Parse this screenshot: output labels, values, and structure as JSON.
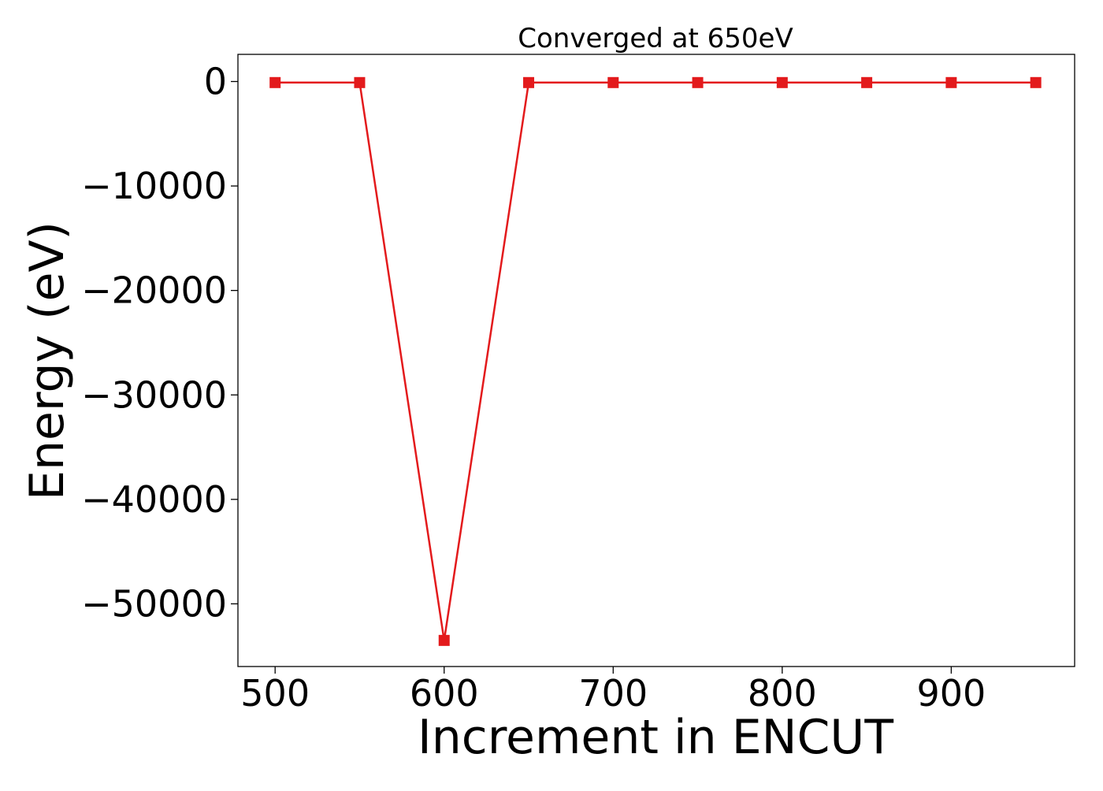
{
  "chart_data": {
    "type": "line",
    "title": "Converged at 650eV",
    "xlabel": "Increment in ENCUT",
    "ylabel": "Energy (eV)",
    "xlim": [
      478,
      973
    ],
    "ylim": [
      -56000,
      2600
    ],
    "x_ticks": [
      500,
      600,
      700,
      800,
      900
    ],
    "y_ticks": [
      0,
      -10000,
      -20000,
      -30000,
      -40000,
      -50000
    ],
    "grid": false,
    "marker": "square",
    "series": [
      {
        "color": "#e31a1c",
        "x": [
          500,
          550,
          600,
          650,
          700,
          750,
          800,
          850,
          900,
          950
        ],
        "y": [
          -100,
          -100,
          -53500,
          -100,
          -100,
          -100,
          -100,
          -100,
          -100,
          -100
        ]
      }
    ]
  }
}
